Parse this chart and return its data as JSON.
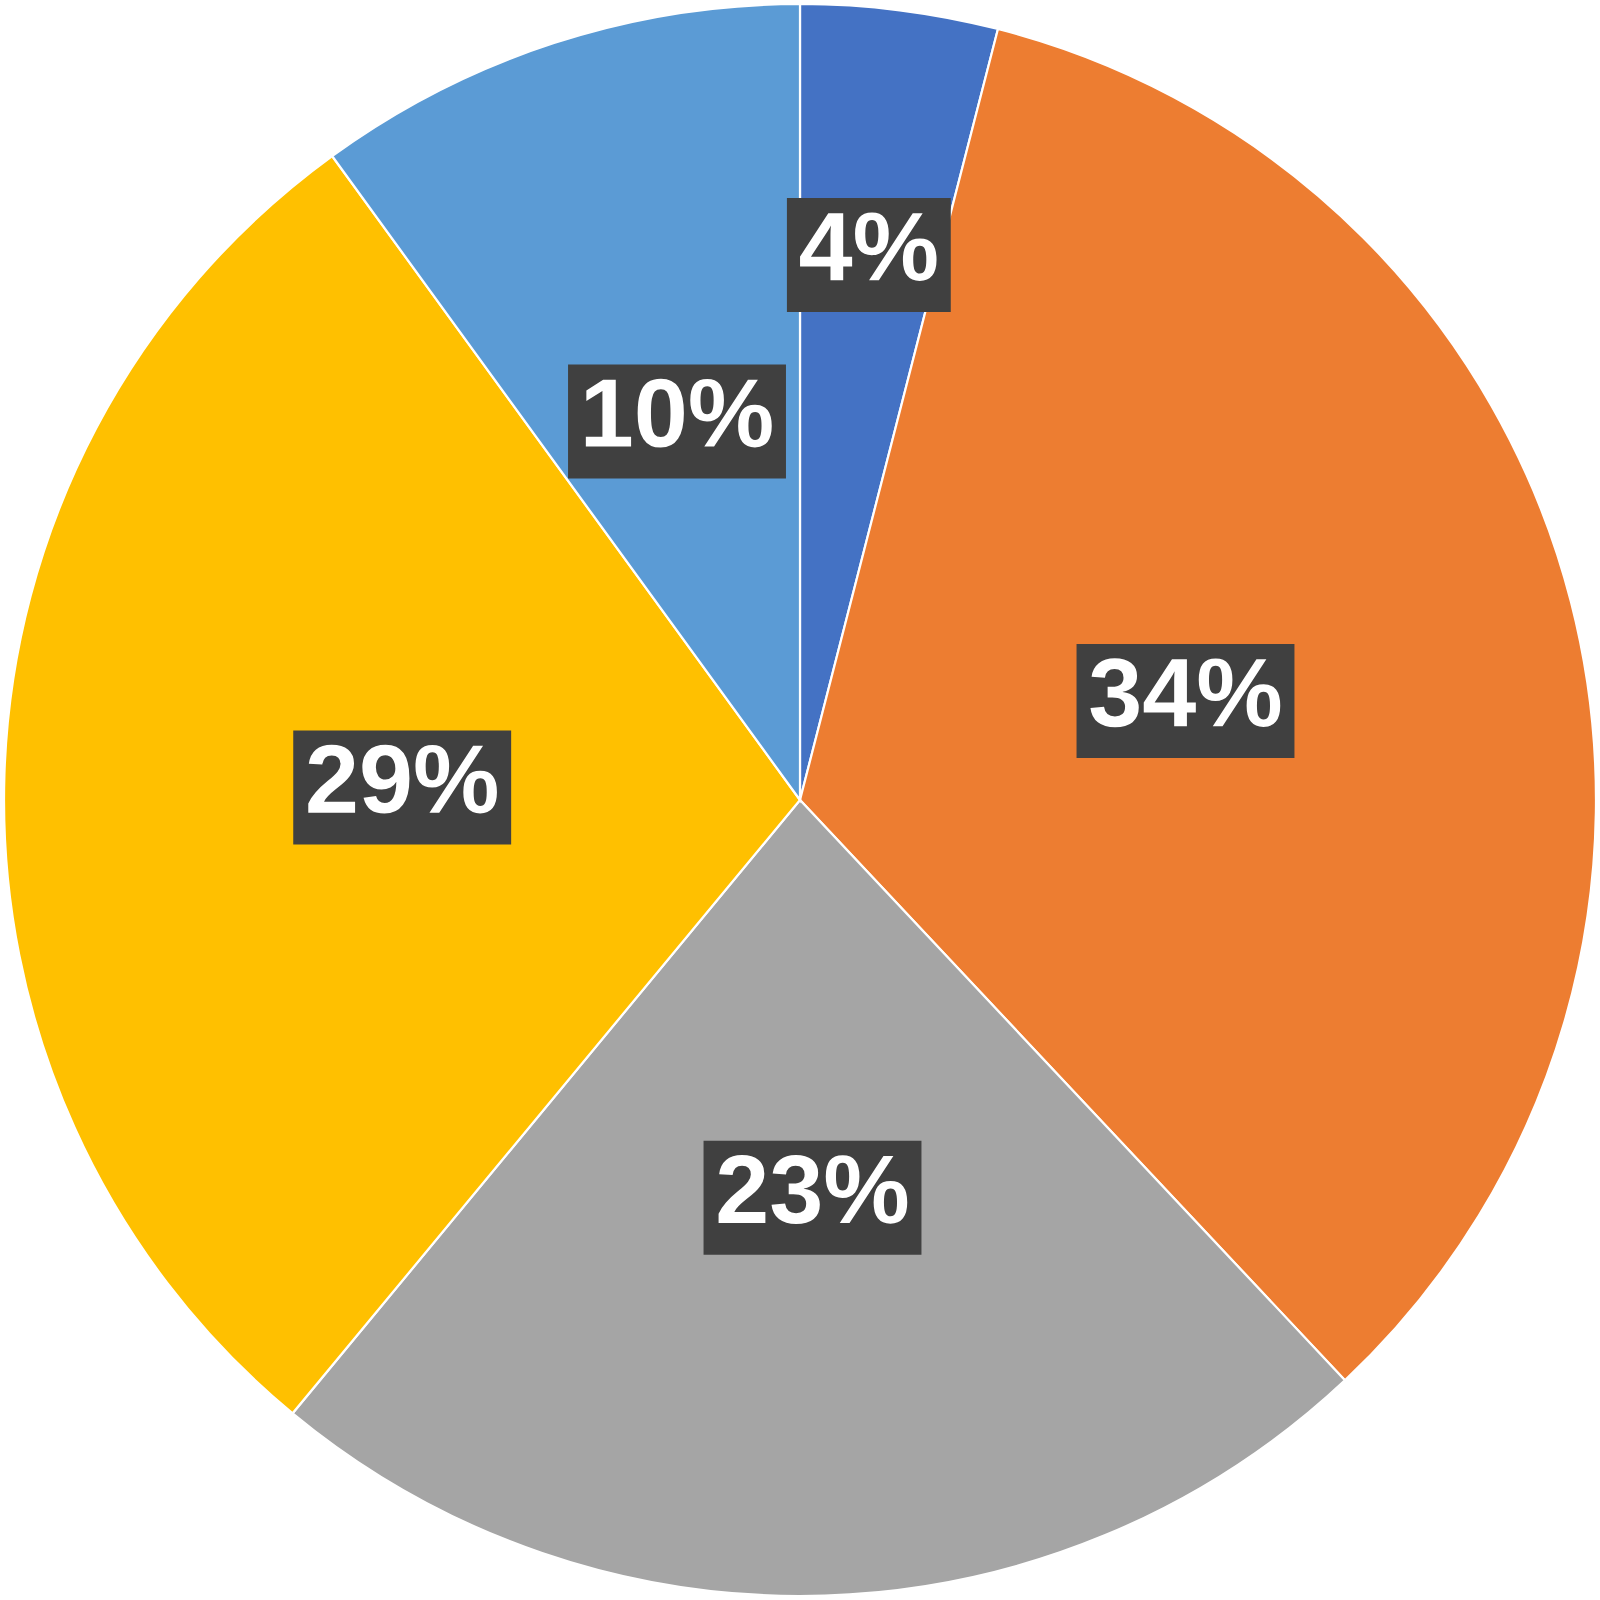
{
  "chart_data": {
    "type": "pie",
    "categories": [
      null,
      null,
      null,
      null,
      null
    ],
    "values": [
      4,
      34,
      23,
      29,
      10
    ],
    "colors": [
      "#4472c4",
      "#ed7d31",
      "#a5a5a5",
      "#ffc000",
      "#5b9bd5"
    ],
    "value_labels": [
      "4%",
      "34%",
      "23%",
      "29%",
      "10%"
    ]
  }
}
